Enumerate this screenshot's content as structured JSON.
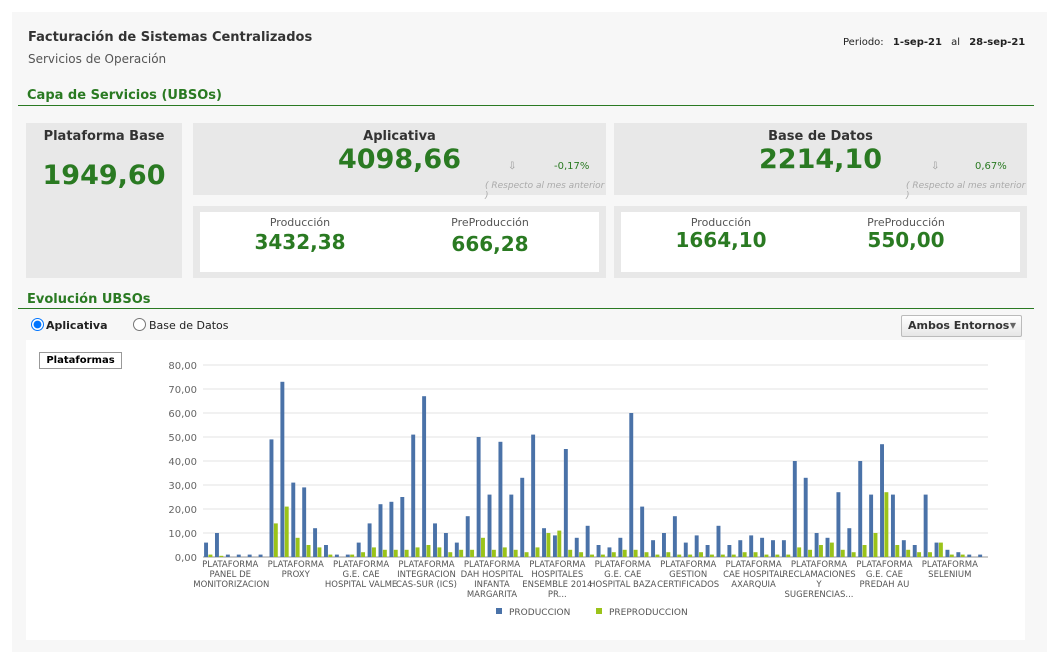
{
  "header": {
    "title": "Facturación de Sistemas Centralizados",
    "subtitle": "Servicios de Operación",
    "period_label": "Periodo:",
    "period_start": "1-sep-21",
    "period_sep": "al",
    "period_end": "28-sep-21"
  },
  "section_services": "Capa de Servicios (UBSOs)",
  "kpi_base": {
    "title": "Plataforma Base",
    "value": "1949,60"
  },
  "kpi_aplicativa": {
    "title": "Aplicativa",
    "value": "4098,66",
    "arrow": "⇩",
    "change": "-0,17%",
    "note": "( Respecto al mes anterior )",
    "prod_label": "Producción",
    "prod_value": "3432,38",
    "pre_label": "PreProducción",
    "pre_value": "666,28"
  },
  "kpi_datos": {
    "title": "Base de Datos",
    "value": "2214,10",
    "arrow": "⇩",
    "change": "0,67%",
    "note": "( Respecto al mes anterior )",
    "prod_label": "Producción",
    "prod_value": "1664,10",
    "pre_label": "PreProducción",
    "pre_value": "550,00"
  },
  "section_evolution": "Evolución UBSOs",
  "radio": [
    "Aplicativa",
    "Base de Datos"
  ],
  "dropdown": "Ambos Entornos",
  "button": "Plataformas",
  "chart_data": {
    "type": "bar",
    "categories": [
      null,
      null,
      "PLATAFORMA PANEL DE MONITORIZACION",
      null,
      null,
      null,
      null,
      null,
      "PLATAFORMA PROXY",
      null,
      null,
      null,
      null,
      null,
      "PLATAFORMA G.E. CAE HOSPITAL VALME",
      null,
      null,
      null,
      null,
      null,
      "PLATAFORMA INTEGRACION CAS-SUR (ICS)",
      null,
      null,
      null,
      null,
      null,
      "PLATAFORMA DAH HOSPITAL INFANTA MARGARITA",
      null,
      null,
      null,
      null,
      null,
      "PLATAFORMA HOSPITALES ENSEMBLE 2014 PR...",
      null,
      null,
      null,
      null,
      null,
      "PLATAFORMA G.E. CAE HOSPITAL BAZA",
      null,
      null,
      null,
      null,
      null,
      "PLATAFORMA GESTION CERTIFICADOS",
      null,
      null,
      null,
      null,
      null,
      "PLATAFORMA CAE HOSPITAL AXARQUIA",
      null,
      null,
      null,
      null,
      null,
      "PLATAFORMA RECLAMACIONES Y SUGERENCIAS...",
      null,
      null,
      null,
      null,
      null,
      "PLATAFORMA G.E. CAE PREDAH AU",
      null,
      null,
      null,
      null,
      null,
      "PLATAFORMA SELENIUM",
      null,
      null,
      null
    ],
    "series": [
      {
        "name": "PRODUCCION",
        "color": "#4a72a8",
        "values": [
          6,
          10,
          1,
          1,
          1,
          1,
          49,
          73,
          31,
          29,
          12,
          5,
          1,
          1,
          6,
          14,
          22,
          23,
          25,
          51,
          67,
          14,
          10,
          6,
          17,
          50,
          26,
          48,
          26,
          33,
          51,
          12,
          9,
          45,
          8,
          13,
          5,
          4,
          8,
          60,
          21,
          7,
          10,
          17,
          6,
          9,
          5,
          13,
          5,
          7,
          9,
          8,
          7,
          7,
          40,
          33,
          10,
          8,
          27,
          12,
          40,
          26,
          47,
          26,
          7,
          5,
          26,
          6,
          3,
          2,
          1,
          1
        ]
      },
      {
        "name": "PREPRODUCCION",
        "color": "#9bc31a",
        "values": [
          1,
          0.5,
          0,
          0,
          0,
          0,
          14,
          21,
          8,
          5,
          4,
          1,
          0,
          1,
          2,
          4,
          3,
          3,
          3,
          4,
          5,
          4,
          2,
          3,
          3,
          8,
          3,
          4,
          3,
          2,
          4,
          10,
          11,
          3,
          2,
          1,
          1,
          2,
          3,
          3,
          2,
          1,
          2,
          1,
          1,
          2,
          1,
          1,
          1,
          2,
          2,
          1,
          1,
          1,
          4,
          3,
          5,
          6,
          3,
          2,
          5,
          10,
          27,
          5,
          3,
          2,
          2,
          6,
          1,
          1,
          0,
          0
        ]
      }
    ],
    "ylim": [
      0,
      80
    ],
    "yticks": [
      {
        "value": 0,
        "label": "0,00"
      },
      {
        "value": 10,
        "label": "10,00"
      },
      {
        "value": 20,
        "label": "20,00"
      },
      {
        "value": 30,
        "label": "30,00"
      },
      {
        "value": 40,
        "label": "40,00"
      },
      {
        "value": 50,
        "label": "50,00"
      },
      {
        "value": 60,
        "label": "60,00"
      },
      {
        "value": 70,
        "label": "70,00"
      },
      {
        "value": 80,
        "label": "80,00"
      }
    ],
    "grid": true
  }
}
